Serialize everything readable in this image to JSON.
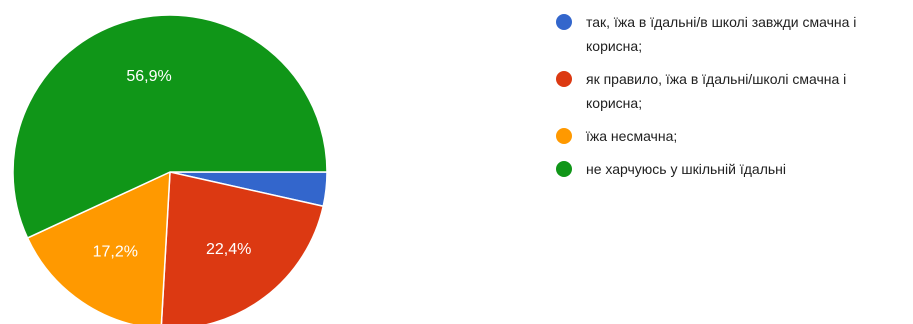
{
  "chart_data": {
    "type": "pie",
    "start_angle_deg": 90,
    "direction": "clockwise",
    "slices": [
      {
        "label": "так, їжа в їдальні/в школі завжди смачна і корисна;",
        "value": 3.5,
        "data_label": "",
        "color": "#3366cc"
      },
      {
        "label": "як правило, їжа в їдальні/школі смачна і корисна;",
        "value": 22.4,
        "data_label": "22,4%",
        "color": "#dc3912"
      },
      {
        "label": "їжа несмачна;",
        "value": 17.2,
        "data_label": "17,2%",
        "color": "#ff9900"
      },
      {
        "label": "не харчуюсь у шкільній їдальні",
        "value": 56.9,
        "data_label": "56,9%",
        "color": "#109618"
      }
    ],
    "legend_position": "right"
  }
}
